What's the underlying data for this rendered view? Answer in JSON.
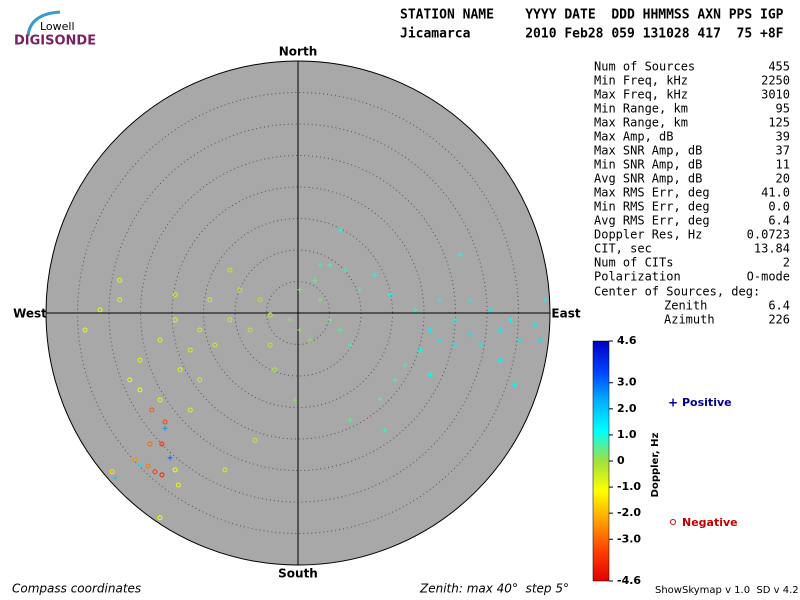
{
  "logo": {
    "top": "Lowell",
    "bottom": "DIGISONDE"
  },
  "header": {
    "line1": "STATION NAME    YYYY DATE  DDD HHMMSS AXN PPS IGP",
    "line2": "Jicamarca       2010 Feb28 059 131028 417  75 +8F"
  },
  "stats": {
    "rows": [
      [
        "Num of Sources",
        "455"
      ],
      [
        "Min Freq, kHz",
        "2250"
      ],
      [
        "Max Freq, kHz",
        "3010"
      ],
      [
        "Min Range, km",
        "95"
      ],
      [
        "Max Range, km",
        "125"
      ],
      [
        "Max Amp, dB",
        "39"
      ],
      [
        "Max SNR Amp, dB",
        "37"
      ],
      [
        "Min SNR Amp, dB",
        "11"
      ],
      [
        "Avg SNR Amp, dB",
        "20"
      ],
      [
        "Max RMS Err, deg",
        "41.0"
      ],
      [
        "Min RMS Err, deg",
        "0.0"
      ],
      [
        "Avg RMS Err, deg",
        "6.4"
      ],
      [
        "Doppler Res, Hz",
        "0.0723"
      ],
      [
        "CIT, sec",
        "13.84"
      ],
      [
        "Num of CITs",
        "2"
      ],
      [
        "Polarization",
        "O-mode"
      ]
    ],
    "center_title": "Center of Sources, deg:",
    "center_rows": [
      [
        "Zenith",
        "6.4"
      ],
      [
        "Azimuth",
        "226"
      ]
    ]
  },
  "chart_data": {
    "type": "skymap",
    "compass": {
      "north": "North",
      "south": "South",
      "east": "East",
      "west": "West"
    },
    "footer_left": "Compass coordinates",
    "footer_mid": "Zenith: max 40°  step 5°",
    "footer_right": "ShowSkymap v 1.0  SD v 4.2",
    "zenith_max": 40,
    "ring_step": 5,
    "xlim": [
      -40,
      40
    ],
    "ylim": [
      -40,
      40
    ],
    "x": [
      21.0,
      22.5,
      24.9,
      27.3,
      28.9,
      32.1,
      33.7,
      35.2,
      37.6,
      39.2,
      25.7,
      22.5,
      18.6,
      19.4,
      17.0,
      15.4,
      13.0,
      13.8,
      8.3,
      7.5,
      9.8,
      12.2,
      14.6,
      32.1,
      34.4,
      21.0,
      38.4,
      24.9,
      27.3,
      30.5,
      3.5,
      5.1,
      1.9,
      0.3,
      -1.3,
      6.7,
      2.7,
      5.1,
      0.3,
      8.3,
      -0.5,
      -4.4,
      -7.6,
      -10.8,
      -14.0,
      -15.6,
      -17.1,
      -19.5,
      -21.9,
      -25.1,
      -26.7,
      -28.3,
      -31.4,
      -33.8,
      -18.7,
      -13.2,
      -9.2,
      -6.0,
      -10.8,
      -19.5,
      -21.9,
      -19.5,
      -11.6,
      -6.8,
      -3.7,
      -4.4,
      -15.6,
      -28.3,
      -25.1,
      -17.1,
      -23.2,
      -21.1,
      -23.5,
      -21.6,
      -25.9,
      -23.8,
      -22.7,
      -21.6,
      -29.5,
      -19.0,
      -21.9,
      -21.1,
      -20.3,
      -25.1,
      -29.0,
      6.7,
      3.5
    ],
    "y": [
      -2.7,
      -4.3,
      -1.1,
      -3.5,
      -5.1,
      -2.7,
      -1.1,
      -4.3,
      -1.9,
      2.1,
      9.2,
      2.1,
      0.5,
      -5.9,
      -8.3,
      -10.6,
      -13.7,
      -18.6,
      -17.0,
      6.8,
      3.7,
      6.0,
      2.9,
      -7.5,
      -11.4,
      -9.8,
      -4.3,
      -5.1,
      2.1,
      0.5,
      2.1,
      -1.1,
      -4.3,
      -2.7,
      -1.1,
      -2.7,
      5.2,
      7.6,
      3.7,
      -5.1,
      -13.8,
      -0.3,
      -2.7,
      -1.1,
      2.1,
      -2.7,
      -5.9,
      -1.1,
      -4.3,
      -7.5,
      -10.6,
      2.1,
      0.5,
      -2.7,
      -9.0,
      -5.1,
      3.7,
      2.1,
      6.8,
      2.9,
      -13.8,
      -24.9,
      -24.9,
      -20.2,
      -9.0,
      -5.1,
      -10.6,
      5.2,
      -12.2,
      -15.4,
      -15.4,
      -17.3,
      -20.8,
      -20.8,
      -23.3,
      -24.3,
      -25.2,
      -25.7,
      -25.2,
      -27.3,
      -32.5,
      -18.3,
      -23.0,
      -24.1,
      -26.2,
      13.2,
      7.6
    ],
    "values": [
      1.3,
      1.4,
      1.2,
      1.5,
      1.3,
      1.4,
      1.2,
      1.5,
      1.3,
      1.2,
      1.1,
      1.2,
      1.0,
      1.1,
      0.9,
      0.8,
      0.7,
      0.8,
      0.5,
      0.7,
      0.9,
      1.0,
      1.1,
      1.3,
      1.2,
      1.1,
      1.5,
      1.4,
      1.3,
      1.4,
      0.3,
      0.4,
      0.2,
      0.1,
      0.1,
      0.5,
      0.4,
      0.6,
      0.2,
      0.6,
      0.2,
      -0.2,
      -0.3,
      -0.4,
      -0.5,
      -0.6,
      -0.6,
      -0.7,
      -0.8,
      -0.9,
      -1.0,
      -0.8,
      -0.9,
      -1.0,
      -0.7,
      -0.5,
      -0.3,
      -0.2,
      -0.4,
      -0.6,
      -0.9,
      -1.1,
      -0.6,
      -0.4,
      -0.2,
      -0.3,
      -0.6,
      -0.9,
      -1.0,
      -0.7,
      -3.2,
      -3.5,
      -3.0,
      -3.8,
      -2.5,
      -2.8,
      -3.6,
      -4.0,
      -1.5,
      -1.0,
      -1.2,
      2.5,
      3.0,
      1.5,
      1.8,
      1.0,
      0.8
    ],
    "colorbar": {
      "label": "Doppler, Hz",
      "clim": [
        -4.6,
        4.6
      ],
      "ticks": [
        4.6,
        {
          "value": 3,
          "label": "3.0"
        },
        {
          "value": 2,
          "label": "2.0"
        },
        {
          "value": 1,
          "label": "1.0"
        },
        0,
        {
          "value": -1,
          "label": "-1.0"
        },
        {
          "value": -2,
          "label": "-2.0"
        },
        {
          "value": -3,
          "label": "-3.0"
        },
        -4.6
      ],
      "colorscale": [
        "#e00000",
        "#ff4000",
        "#ffa000",
        "#ffff00",
        "#a0e040",
        "#00ffff",
        "#00b0ff",
        "#0040ff",
        "#0000c0"
      ]
    },
    "legend": {
      "positive": "Positive",
      "negative": "Negative"
    },
    "background": "#a8a8a8"
  }
}
